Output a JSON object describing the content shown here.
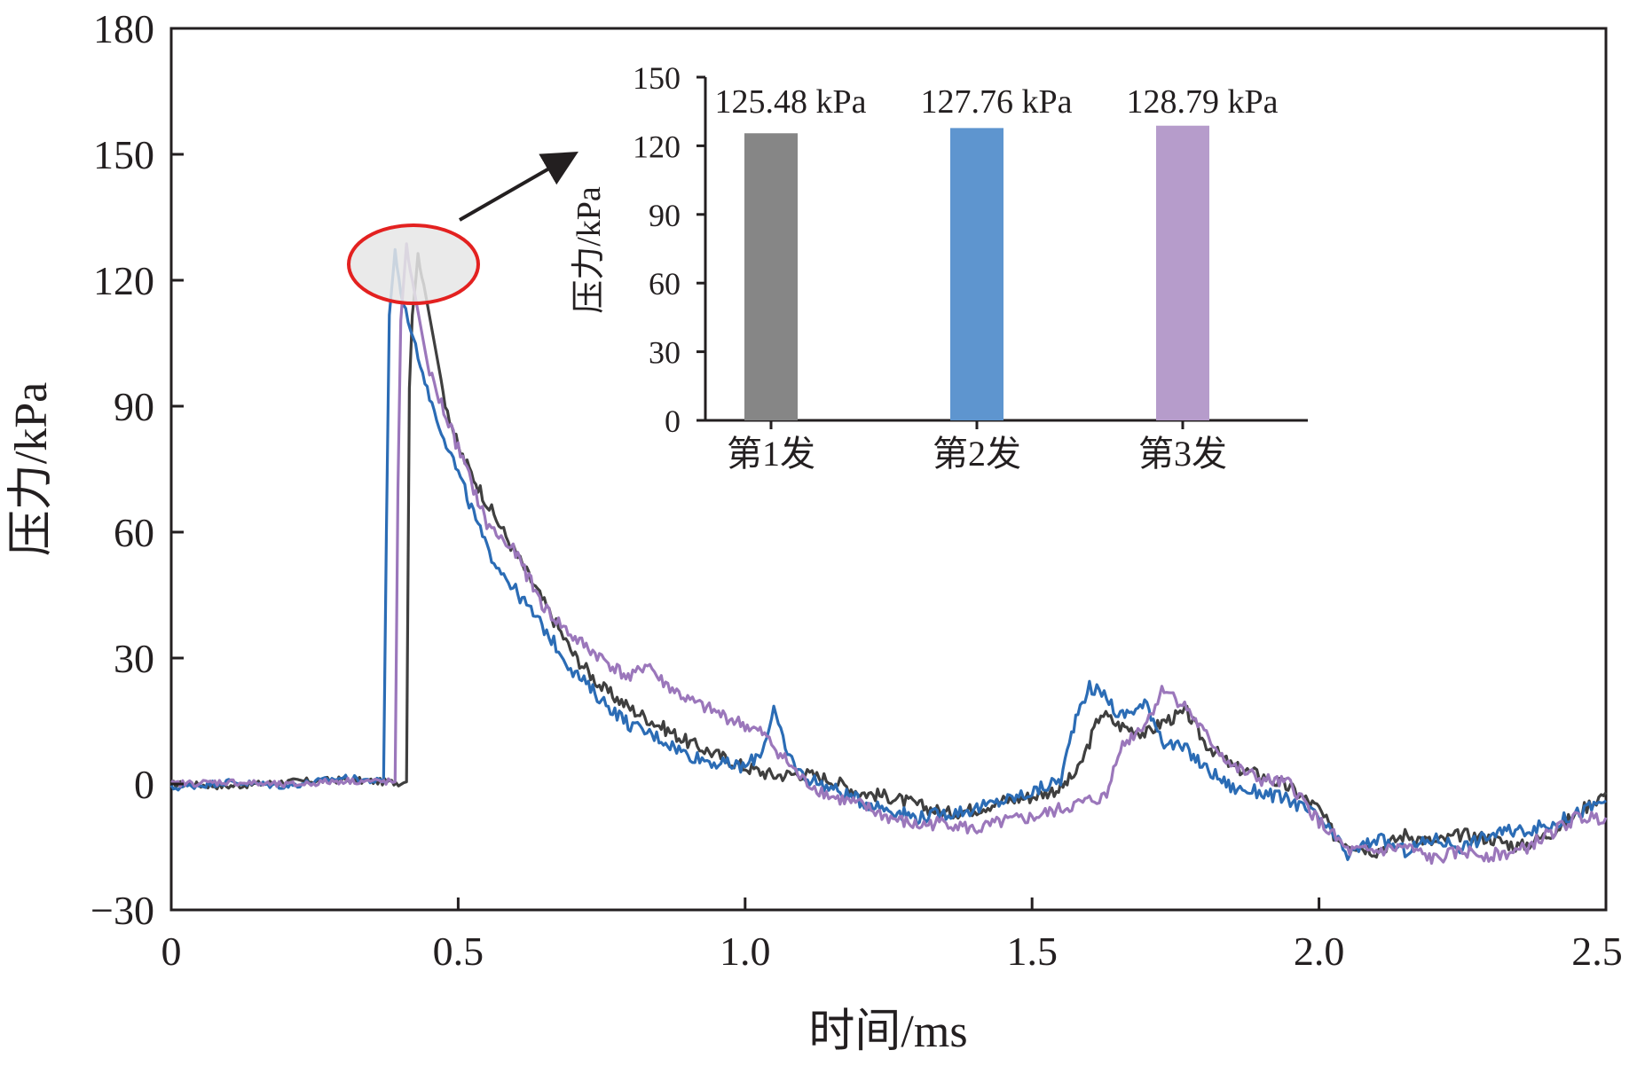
{
  "chart_data": [
    {
      "type": "line",
      "xlabel": "时间/ms",
      "ylabel": "压力/kPa",
      "xlim": [
        0,
        2.5
      ],
      "ylim": [
        -30,
        180
      ],
      "x_ticks": [
        "0",
        "0.5",
        "1.0",
        "1.5",
        "2.0",
        "2.5"
      ],
      "y_ticks": [
        "−30",
        "0",
        "30",
        "60",
        "90",
        "120",
        "150",
        "180"
      ],
      "series": [
        {
          "color": "#3f3f3f",
          "points": [
            [
              0,
              0
            ],
            [
              0.1,
              -0.5
            ],
            [
              0.2,
              0.5
            ],
            [
              0.3,
              1
            ],
            [
              0.4,
              0.3
            ],
            [
              0.41,
              0.5
            ],
            [
              0.415,
              95
            ],
            [
              0.42,
              112
            ],
            [
              0.43,
              126
            ],
            [
              0.44,
              119
            ],
            [
              0.47,
              95
            ],
            [
              0.5,
              80
            ],
            [
              0.55,
              67
            ],
            [
              0.6,
              55
            ],
            [
              0.65,
              43
            ],
            [
              0.7,
              31
            ],
            [
              0.75,
              23
            ],
            [
              0.8,
              18
            ],
            [
              0.85,
              14
            ],
            [
              0.9,
              10
            ],
            [
              0.95,
              7
            ],
            [
              1.0,
              4
            ],
            [
              1.05,
              2
            ],
            [
              1.1,
              2.5
            ],
            [
              1.15,
              1
            ],
            [
              1.2,
              -2
            ],
            [
              1.25,
              -3
            ],
            [
              1.3,
              -5
            ],
            [
              1.35,
              -7
            ],
            [
              1.4,
              -6
            ],
            [
              1.45,
              -4
            ],
            [
              1.5,
              -3
            ],
            [
              1.55,
              -1
            ],
            [
              1.58,
              3
            ],
            [
              1.62,
              17
            ],
            [
              1.65,
              14
            ],
            [
              1.7,
              12
            ],
            [
              1.73,
              15
            ],
            [
              1.77,
              17
            ],
            [
              1.8,
              10
            ],
            [
              1.85,
              4
            ],
            [
              1.9,
              2
            ],
            [
              1.95,
              -1
            ],
            [
              2.0,
              -6
            ],
            [
              2.03,
              -13
            ],
            [
              2.05,
              -14
            ],
            [
              2.1,
              -16
            ],
            [
              2.15,
              -12
            ],
            [
              2.2,
              -14
            ],
            [
              2.25,
              -12
            ],
            [
              2.3,
              -13
            ],
            [
              2.35,
              -15
            ],
            [
              2.4,
              -12
            ],
            [
              2.45,
              -7
            ],
            [
              2.5,
              -2
            ]
          ]
        },
        {
          "color": "#2b6cb5",
          "points": [
            [
              0,
              -1
            ],
            [
              0.1,
              0.5
            ],
            [
              0.2,
              -0.5
            ],
            [
              0.3,
              1.5
            ],
            [
              0.37,
              0.5
            ],
            [
              0.375,
              60
            ],
            [
              0.38,
              112
            ],
            [
              0.39,
              127
            ],
            [
              0.4,
              117
            ],
            [
              0.43,
              102
            ],
            [
              0.45,
              92
            ],
            [
              0.5,
              74
            ],
            [
              0.55,
              56
            ],
            [
              0.6,
              46
            ],
            [
              0.65,
              37
            ],
            [
              0.7,
              27
            ],
            [
              0.75,
              20
            ],
            [
              0.8,
              14
            ],
            [
              0.85,
              11
            ],
            [
              0.9,
              7
            ],
            [
              0.95,
              5
            ],
            [
              1.0,
              4
            ],
            [
              1.03,
              8
            ],
            [
              1.05,
              18
            ],
            [
              1.07,
              8
            ],
            [
              1.1,
              2
            ],
            [
              1.15,
              -1
            ],
            [
              1.2,
              -4
            ],
            [
              1.25,
              -6
            ],
            [
              1.3,
              -8
            ],
            [
              1.35,
              -7
            ],
            [
              1.4,
              -6
            ],
            [
              1.45,
              -4
            ],
            [
              1.5,
              -2
            ],
            [
              1.55,
              1
            ],
            [
              1.58,
              18
            ],
            [
              1.6,
              23
            ],
            [
              1.63,
              21
            ],
            [
              1.65,
              16
            ],
            [
              1.7,
              19
            ],
            [
              1.73,
              10
            ],
            [
              1.77,
              8
            ],
            [
              1.8,
              4
            ],
            [
              1.85,
              -1
            ],
            [
              1.9,
              -2
            ],
            [
              1.95,
              -4
            ],
            [
              2.0,
              -8
            ],
            [
              2.05,
              -17
            ],
            [
              2.1,
              -13
            ],
            [
              2.15,
              -16
            ],
            [
              2.2,
              -13
            ],
            [
              2.25,
              -15
            ],
            [
              2.3,
              -12
            ],
            [
              2.35,
              -11
            ],
            [
              2.4,
              -10
            ],
            [
              2.45,
              -7
            ],
            [
              2.5,
              -4
            ]
          ]
        },
        {
          "color": "#9b77bb",
          "points": [
            [
              0,
              0
            ],
            [
              0.1,
              0.5
            ],
            [
              0.2,
              -0.3
            ],
            [
              0.3,
              0.8
            ],
            [
              0.39,
              0.5
            ],
            [
              0.395,
              70
            ],
            [
              0.4,
              110
            ],
            [
              0.41,
              128
            ],
            [
              0.42,
              120
            ],
            [
              0.45,
              98
            ],
            [
              0.5,
              80
            ],
            [
              0.55,
              62
            ],
            [
              0.6,
              55
            ],
            [
              0.65,
              42
            ],
            [
              0.7,
              35
            ],
            [
              0.75,
              30
            ],
            [
              0.8,
              25
            ],
            [
              0.83,
              29
            ],
            [
              0.85,
              25
            ],
            [
              0.9,
              20
            ],
            [
              0.95,
              17
            ],
            [
              1.0,
              14
            ],
            [
              1.03,
              12
            ],
            [
              1.05,
              9
            ],
            [
              1.1,
              1
            ],
            [
              1.15,
              -3
            ],
            [
              1.2,
              -5
            ],
            [
              1.25,
              -8
            ],
            [
              1.3,
              -10
            ],
            [
              1.35,
              -9
            ],
            [
              1.4,
              -11
            ],
            [
              1.45,
              -9
            ],
            [
              1.5,
              -8
            ],
            [
              1.55,
              -6
            ],
            [
              1.6,
              -4
            ],
            [
              1.63,
              -3
            ],
            [
              1.65,
              8
            ],
            [
              1.7,
              15
            ],
            [
              1.73,
              23
            ],
            [
              1.77,
              18
            ],
            [
              1.8,
              12
            ],
            [
              1.85,
              4
            ],
            [
              1.9,
              1
            ],
            [
              1.95,
              0
            ],
            [
              2.0,
              -9
            ],
            [
              2.03,
              -13
            ],
            [
              2.05,
              -16
            ],
            [
              2.1,
              -16
            ],
            [
              2.15,
              -15
            ],
            [
              2.2,
              -18
            ],
            [
              2.25,
              -16
            ],
            [
              2.3,
              -17
            ],
            [
              2.35,
              -16
            ],
            [
              2.4,
              -12
            ],
            [
              2.45,
              -8
            ],
            [
              2.5,
              -8
            ]
          ]
        }
      ]
    },
    {
      "type": "bar",
      "ylabel": "压力/kPa",
      "ylim": [
        0,
        150
      ],
      "y_ticks": [
        "0",
        "30",
        "60",
        "90",
        "120",
        "150"
      ],
      "categories": [
        "第1发",
        "第2发",
        "第3发"
      ],
      "values": [
        125.48,
        127.76,
        128.79
      ],
      "value_labels": [
        "125.48 kPa",
        "127.76 kPa",
        "128.79 kPa"
      ],
      "colors": [
        "#868686",
        "#5e95cf",
        "#b69ccb"
      ]
    }
  ],
  "annotation": {
    "ellipse_fill": "#e6e6e6",
    "ellipse_stroke": "#e32120",
    "arrow_color": "#231f20"
  }
}
